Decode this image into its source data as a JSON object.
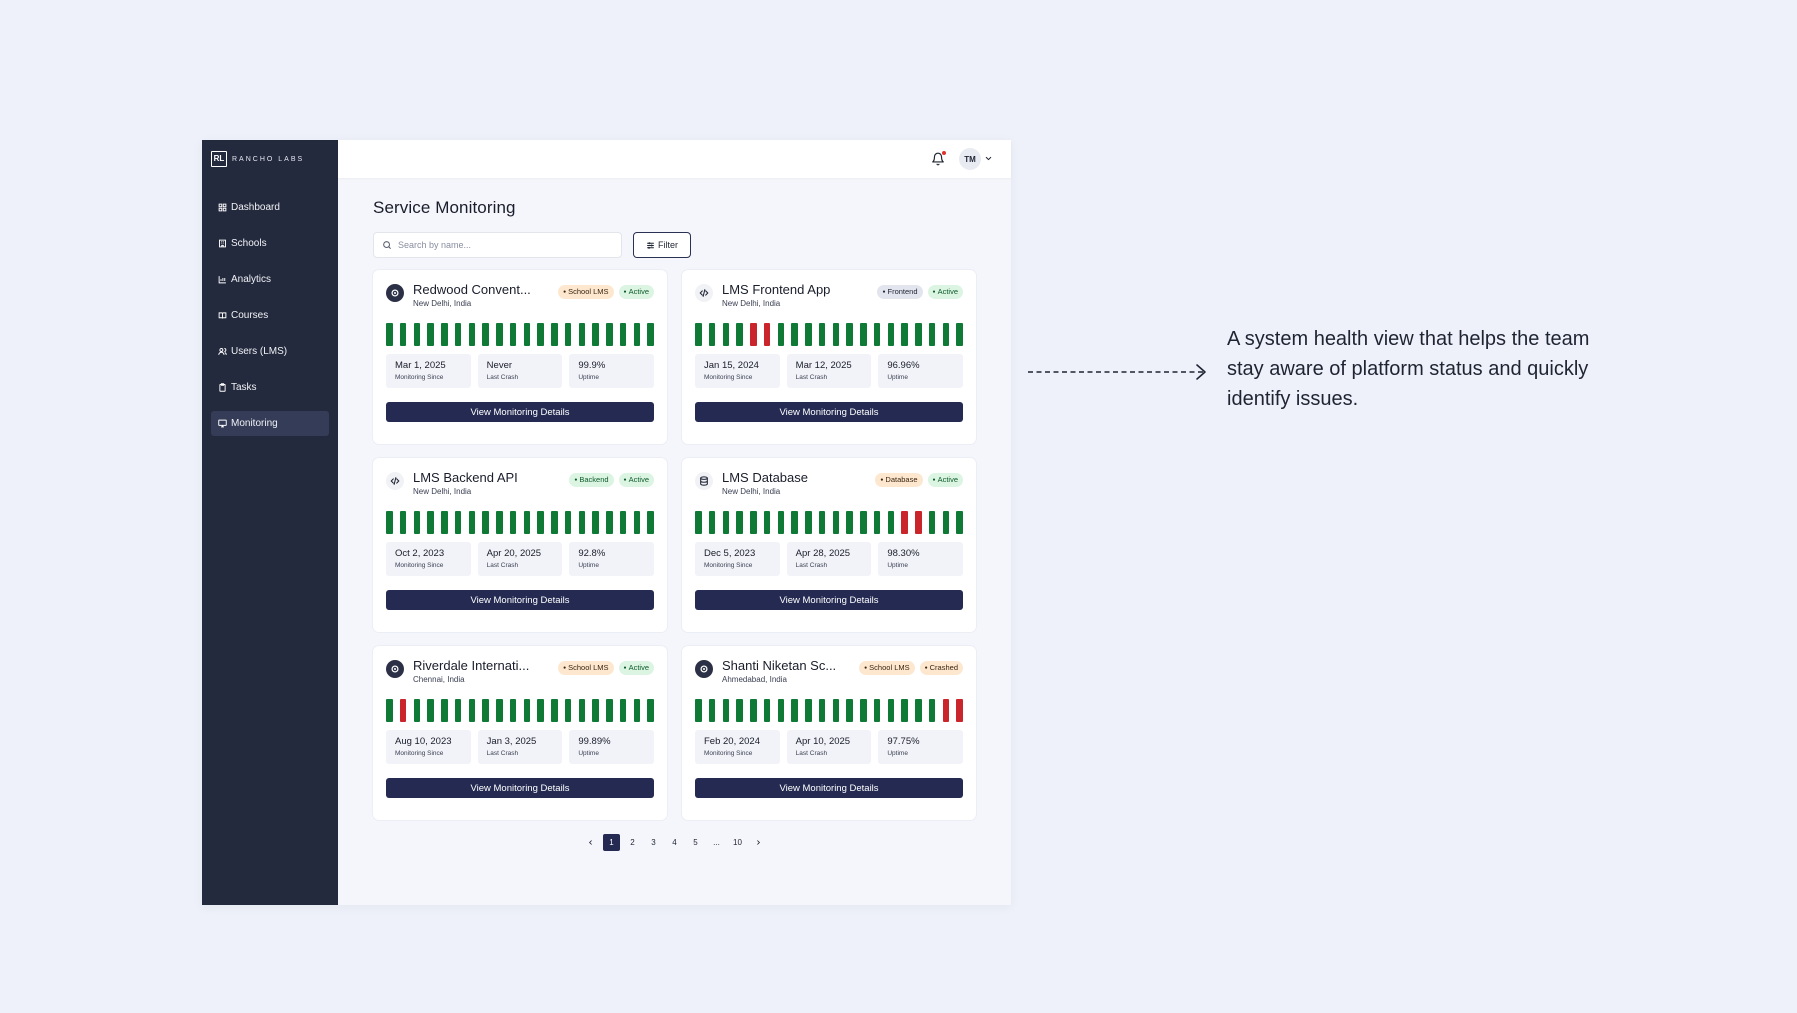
{
  "brand": {
    "logo_mark": "RL",
    "name": "RANCHO LABS"
  },
  "sidebar": {
    "items": [
      {
        "label": "Dashboard",
        "icon": "grid-icon"
      },
      {
        "label": "Schools",
        "icon": "building-icon"
      },
      {
        "label": "Analytics",
        "icon": "chart-icon"
      },
      {
        "label": "Courses",
        "icon": "book-icon"
      },
      {
        "label": "Users (LMS)",
        "icon": "users-icon"
      },
      {
        "label": "Tasks",
        "icon": "clipboard-icon"
      },
      {
        "label": "Monitoring",
        "icon": "monitor-icon",
        "active": true
      }
    ]
  },
  "topbar": {
    "avatar_initials": "TM",
    "has_notification": true
  },
  "page": {
    "title": "Service Monitoring",
    "search_placeholder": "Search by name...",
    "filter_label": "Filter"
  },
  "colors": {
    "uptime_ok": "#0e7a36",
    "uptime_down": "#c9252b",
    "primary": "#242a52",
    "sidebar_bg": "#242a3e"
  },
  "services": [
    {
      "name": "Redwood Convent...",
      "location": "New Delhi, India",
      "icon": "school-crest-icon",
      "type": "School LMS",
      "status": "Active",
      "bars": [
        1,
        1,
        1,
        1,
        1,
        1,
        1,
        1,
        1,
        1,
        1,
        1,
        1,
        1,
        1,
        1,
        1,
        1,
        1,
        1
      ],
      "monitoring_since": "Mar 1, 2025",
      "last_crash": "Never",
      "uptime": "99.9%"
    },
    {
      "name": "LMS Frontend App",
      "location": "New Delhi, India",
      "icon": "code-icon",
      "type": "Frontend",
      "status": "Active",
      "bars": [
        1,
        1,
        1,
        1,
        0,
        0,
        1,
        1,
        1,
        1,
        1,
        1,
        1,
        1,
        1,
        1,
        1,
        1,
        1,
        1
      ],
      "monitoring_since": "Jan 15, 2024",
      "last_crash": "Mar 12, 2025",
      "uptime": "96.96%"
    },
    {
      "name": "LMS Backend API",
      "location": "New Delhi, India",
      "icon": "code-icon",
      "type": "Backend",
      "status": "Active",
      "bars": [
        1,
        1,
        1,
        1,
        1,
        1,
        1,
        1,
        1,
        1,
        1,
        1,
        1,
        1,
        1,
        1,
        1,
        1,
        1,
        1
      ],
      "monitoring_since": "Oct 2, 2023",
      "last_crash": "Apr 20, 2025",
      "uptime": "92.8%"
    },
    {
      "name": "LMS Database",
      "location": "New Delhi, India",
      "icon": "database-icon",
      "type": "Database",
      "status": "Active",
      "bars": [
        1,
        1,
        1,
        1,
        1,
        1,
        1,
        1,
        1,
        1,
        1,
        1,
        1,
        1,
        1,
        0,
        0,
        1,
        1,
        1
      ],
      "monitoring_since": "Dec 5, 2023",
      "last_crash": "Apr 28, 2025",
      "uptime": "98.30%"
    },
    {
      "name": "Riverdale Internati...",
      "location": "Chennai, India",
      "icon": "school-crest-icon",
      "type": "School LMS",
      "status": "Active",
      "bars": [
        1,
        0,
        1,
        1,
        1,
        1,
        1,
        1,
        1,
        1,
        1,
        1,
        1,
        1,
        1,
        1,
        1,
        1,
        1,
        1
      ],
      "monitoring_since": "Aug 10, 2023",
      "last_crash": "Jan 3, 2025",
      "uptime": "99.89%"
    },
    {
      "name": "Shanti Niketan Sc...",
      "location": "Ahmedabad, India",
      "icon": "school-crest-icon",
      "type": "School LMS",
      "status": "Crashed",
      "bars": [
        1,
        1,
        1,
        1,
        1,
        1,
        1,
        1,
        1,
        1,
        1,
        1,
        1,
        1,
        1,
        1,
        1,
        1,
        0,
        0
      ],
      "monitoring_since": "Feb 20, 2024",
      "last_crash": "Apr 10, 2025",
      "uptime": "97.75%"
    }
  ],
  "card_labels": {
    "monitoring_since": "Monitoring Since",
    "last_crash": "Last Crash",
    "uptime": "Uptime",
    "details_button": "View Monitoring Details"
  },
  "pagination": {
    "pages": [
      "1",
      "2",
      "3",
      "4",
      "5",
      "...",
      "10"
    ],
    "current": "1"
  },
  "annotation": {
    "caption": "A system health view that helps the team stay aware of platform status and quickly identify issues."
  }
}
